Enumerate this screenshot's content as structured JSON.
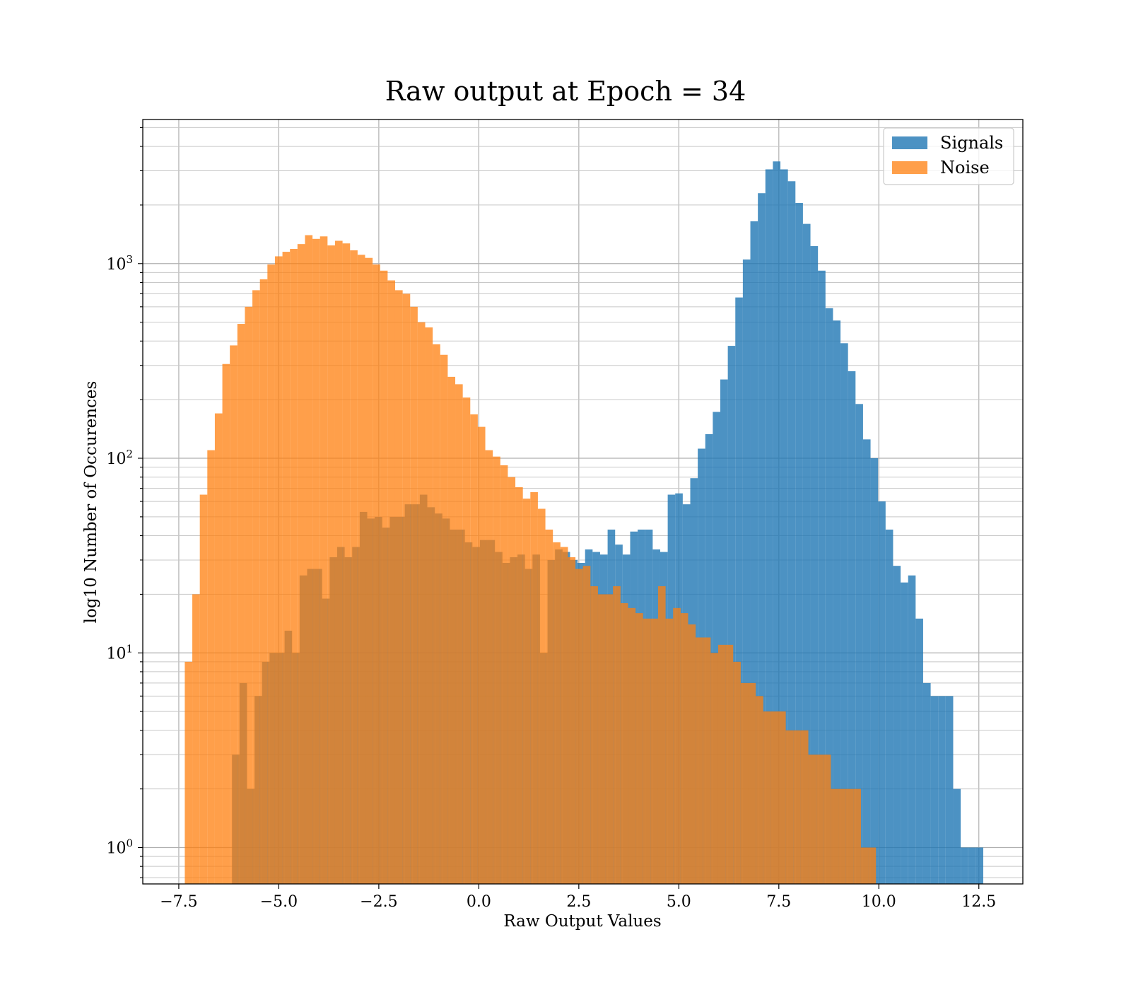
{
  "chart_data": {
    "type": "histogram",
    "title": "Raw output at Epoch = 34",
    "xlabel": "Raw Output Values",
    "ylabel": "log10 Number of Occurences",
    "yscale": "log",
    "xlim": [
      -8.4,
      13.6
    ],
    "ylim": [
      0.65,
      5500
    ],
    "xticks": [
      -7.5,
      -5.0,
      -2.5,
      0.0,
      2.5,
      5.0,
      7.5,
      10.0,
      12.5
    ],
    "xtick_labels": [
      "−7.5",
      "−5.0",
      "−2.5",
      "0.0",
      "2.5",
      "5.0",
      "7.5",
      "10.0",
      "12.5"
    ],
    "yticks": [
      1,
      10,
      100,
      1000
    ],
    "grid": true,
    "legend": {
      "placement": "top-right",
      "entries": [
        "Signals",
        "Noise"
      ]
    },
    "series": [
      {
        "name": "Signals",
        "color": "#1f77b4",
        "alpha": 0.8,
        "bin_start": -6.17,
        "bin_width": 0.1878,
        "counts": [
          3,
          7,
          2,
          6,
          9,
          10,
          10,
          13,
          10,
          25,
          27,
          27,
          19,
          31,
          35,
          31,
          35,
          53,
          49,
          50,
          44,
          50,
          50,
          58,
          58,
          65,
          56,
          52,
          49,
          43,
          43,
          37,
          35,
          38,
          38,
          33,
          29,
          31,
          32,
          27,
          32,
          10,
          30,
          34,
          33,
          30,
          29,
          34,
          33,
          32,
          43,
          36,
          32,
          42,
          43,
          43,
          34,
          33,
          65,
          66,
          58,
          79,
          112,
          133,
          173,
          254,
          378,
          670,
          1050,
          1650,
          2300,
          3050,
          3350,
          3050,
          2650,
          2050,
          1600,
          1230,
          920,
          590,
          510,
          390,
          280,
          190,
          125,
          100,
          60,
          43,
          28,
          23,
          25,
          15,
          7,
          6,
          6,
          6,
          2,
          1,
          1,
          1
        ]
      },
      {
        "name": "Noise",
        "color": "#ff7f0e",
        "alpha": 0.75,
        "bin_start": -7.35,
        "bin_width": 0.1878,
        "counts": [
          9,
          20,
          65,
          110,
          170,
          305,
          380,
          490,
          600,
          730,
          830,
          990,
          1090,
          1150,
          1190,
          1260,
          1400,
          1340,
          1380,
          1240,
          1310,
          1270,
          1170,
          1110,
          1070,
          990,
          920,
          820,
          730,
          700,
          600,
          500,
          470,
          385,
          340,
          262,
          240,
          205,
          168,
          145,
          110,
          102,
          92,
          80,
          71,
          62,
          67,
          55,
          43,
          37,
          35,
          31,
          27,
          28,
          22,
          20,
          20,
          22,
          18,
          17,
          16,
          15,
          15,
          22,
          15,
          17,
          16,
          14,
          12,
          12,
          10,
          11,
          11,
          9,
          7,
          7,
          6,
          5,
          5,
          5,
          4,
          4,
          4,
          3,
          3,
          3,
          2,
          2,
          2,
          2,
          1,
          1
        ]
      }
    ]
  }
}
